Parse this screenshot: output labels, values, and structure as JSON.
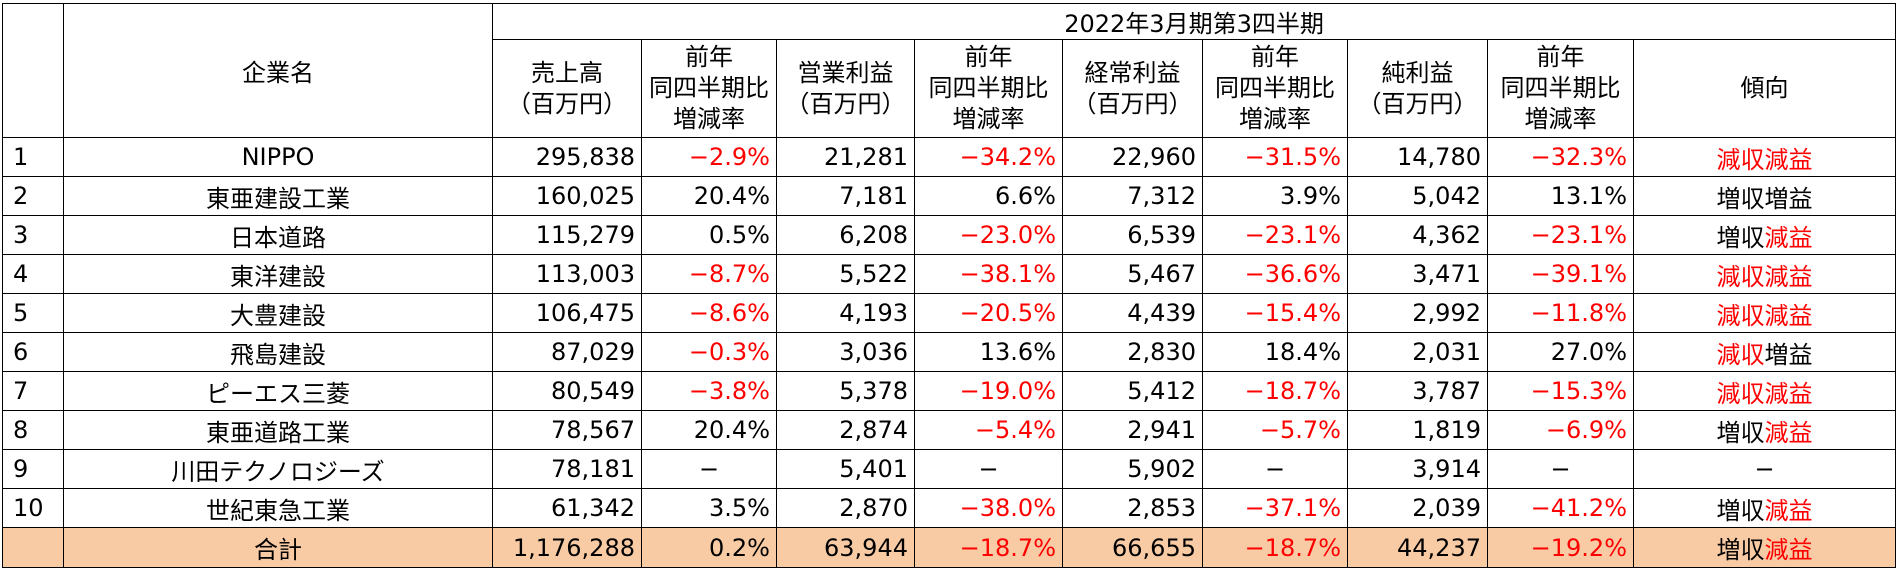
{
  "table": {
    "group_header": "2022年3月期第3四半期",
    "company_header": "企業名",
    "columns": [
      {
        "line1": "売上高",
        "line2": "（百万円）",
        "line3": ""
      },
      {
        "line1": "前年",
        "line2": "同四半期比",
        "line3": "増減率"
      },
      {
        "line1": "営業利益",
        "line2": "（百万円）",
        "line3": ""
      },
      {
        "line1": "前年",
        "line2": "同四半期比",
        "line3": "増減率"
      },
      {
        "line1": "経常利益",
        "line2": "（百万円）",
        "line3": ""
      },
      {
        "line1": "前年",
        "line2": "同四半期比",
        "line3": "増減率"
      },
      {
        "line1": "純利益",
        "line2": "（百万円）",
        "line3": ""
      },
      {
        "line1": "前年",
        "line2": "同四半期比",
        "line3": "増減率"
      },
      {
        "line1": "傾向",
        "line2": "",
        "line3": ""
      }
    ],
    "rows": [
      {
        "rank": "1",
        "name": "NIPPO",
        "sales": "295,838",
        "sales_chg": "−2.9%",
        "op": "21,281",
        "op_chg": "−34.2%",
        "ord": "22,960",
        "ord_chg": "−31.5%",
        "net": "14,780",
        "net_chg": "−32.3%",
        "trend_a": "減収",
        "trend_b": "減益"
      },
      {
        "rank": "2",
        "name": "東亜建設工業",
        "sales": "160,025",
        "sales_chg": "20.4%",
        "op": "7,181",
        "op_chg": "6.6%",
        "ord": "7,312",
        "ord_chg": "3.9%",
        "net": "5,042",
        "net_chg": "13.1%",
        "trend_a": "増収",
        "trend_b": "増益"
      },
      {
        "rank": "3",
        "name": "日本道路",
        "sales": "115,279",
        "sales_chg": "0.5%",
        "op": "6,208",
        "op_chg": "−23.0%",
        "ord": "6,539",
        "ord_chg": "−23.1%",
        "net": "4,362",
        "net_chg": "−23.1%",
        "trend_a": "増収",
        "trend_b": "減益"
      },
      {
        "rank": "4",
        "name": "東洋建設",
        "sales": "113,003",
        "sales_chg": "−8.7%",
        "op": "5,522",
        "op_chg": "−38.1%",
        "ord": "5,467",
        "ord_chg": "−36.6%",
        "net": "3,471",
        "net_chg": "−39.1%",
        "trend_a": "減収",
        "trend_b": "減益"
      },
      {
        "rank": "5",
        "name": "大豊建設",
        "sales": "106,475",
        "sales_chg": "−8.6%",
        "op": "4,193",
        "op_chg": "−20.5%",
        "ord": "4,439",
        "ord_chg": "−15.4%",
        "net": "2,992",
        "net_chg": "−11.8%",
        "trend_a": "減収",
        "trend_b": "減益"
      },
      {
        "rank": "6",
        "name": "飛島建設",
        "sales": "87,029",
        "sales_chg": "−0.3%",
        "op": "3,036",
        "op_chg": "13.6%",
        "ord": "2,830",
        "ord_chg": "18.4%",
        "net": "2,031",
        "net_chg": "27.0%",
        "trend_a": "減収",
        "trend_b": "増益"
      },
      {
        "rank": "7",
        "name": "ピーエス三菱",
        "sales": "80,549",
        "sales_chg": "−3.8%",
        "op": "5,378",
        "op_chg": "−19.0%",
        "ord": "5,412",
        "ord_chg": "−18.7%",
        "net": "3,787",
        "net_chg": "−15.3%",
        "trend_a": "減収",
        "trend_b": "減益"
      },
      {
        "rank": "8",
        "name": "東亜道路工業",
        "sales": "78,567",
        "sales_chg": "20.4%",
        "op": "2,874",
        "op_chg": "−5.4%",
        "ord": "2,941",
        "ord_chg": "−5.7%",
        "net": "1,819",
        "net_chg": "−6.9%",
        "trend_a": "増収",
        "trend_b": "減益"
      },
      {
        "rank": "9",
        "name": "川田テクノロジーズ",
        "sales": "78,181",
        "sales_chg": "−",
        "op": "5,401",
        "op_chg": "−",
        "ord": "5,902",
        "ord_chg": "−",
        "net": "3,914",
        "net_chg": "−",
        "trend_a": "−",
        "trend_b": ""
      },
      {
        "rank": "10",
        "name": "世紀東急工業",
        "sales": "61,342",
        "sales_chg": "3.5%",
        "op": "2,870",
        "op_chg": "−38.0%",
        "ord": "2,853",
        "ord_chg": "−37.1%",
        "net": "2,039",
        "net_chg": "−41.2%",
        "trend_a": "増収",
        "trend_b": "減益"
      }
    ],
    "total": {
      "rank": "",
      "name": "合計",
      "sales": "1,176,288",
      "sales_chg": "0.2%",
      "op": "63,944",
      "op_chg": "−18.7%",
      "ord": "66,655",
      "ord_chg": "−18.7%",
      "net": "44,237",
      "net_chg": "−19.2%",
      "trend_a": "増収",
      "trend_b": "減益"
    },
    "colors": {
      "negative": "#ff0000",
      "total_bg": "#f8cba5",
      "border": "#000000"
    }
  }
}
